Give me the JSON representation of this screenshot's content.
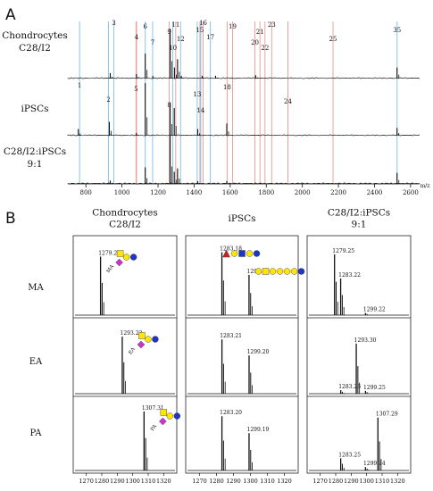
{
  "figure": {
    "panel_a_label": "A",
    "panel_b_label": "B",
    "colors": {
      "blue_marker": "#8cc4e8",
      "red_marker": "#e9a39b",
      "trace": "#111111",
      "glycan_yellow": "#ffe600",
      "glycan_blue": "#1f35c7",
      "glycan_magenta": "#cc33cc",
      "glycan_red": "#cc2222"
    }
  },
  "chart_data": [
    {
      "type": "line",
      "panel": "A",
      "x_unit": "m/z",
      "xlim": [
        700,
        2650
      ],
      "x_ticks": [
        800,
        1000,
        1200,
        1400,
        1600,
        1800,
        2000,
        2200,
        2400,
        2600
      ],
      "tracks": [
        {
          "name": [
            "Chondrocytes",
            "C28/I2"
          ],
          "peaks": [
            {
              "mz": 935,
              "h": 0.1
            },
            {
              "mz": 1080,
              "h": 0.08
            },
            {
              "mz": 1129,
              "h": 0.45
            },
            {
              "mz": 1171,
              "h": 0.05
            },
            {
              "mz": 1267,
              "h": 0.9
            },
            {
              "mz": 1291,
              "h": 0.2
            },
            {
              "mz": 1308,
              "h": 0.35
            },
            {
              "mz": 1329,
              "h": 0.05
            },
            {
              "mz": 1445,
              "h": 0.05
            },
            {
              "mz": 1519,
              "h": 0.05
            },
            {
              "mz": 1741,
              "h": 0.06
            },
            {
              "mz": 2525,
              "h": 0.2
            }
          ],
          "labels": [
            {
              "text": "3",
              "mz": 955
            },
            {
              "text": "4",
              "mz": 1081
            },
            {
              "text": "6",
              "mz": 1129
            },
            {
              "text": "7",
              "mz": 1170
            },
            {
              "text": "9",
              "mz": 1262
            },
            {
              "text": "10",
              "mz": 1282
            },
            {
              "text": "11",
              "mz": 1298
            },
            {
              "text": "12",
              "mz": 1325
            },
            {
              "text": "15",
              "mz": 1432
            },
            {
              "text": "16",
              "mz": 1450
            },
            {
              "text": "17",
              "mz": 1490
            },
            {
              "text": "19",
              "mz": 1613
            },
            {
              "text": "20",
              "mz": 1737
            },
            {
              "text": "21",
              "mz": 1765
            },
            {
              "text": "22",
              "mz": 1793
            },
            {
              "text": "23",
              "mz": 1830
            },
            {
              "text": "25",
              "mz": 2170
            },
            {
              "text": "35",
              "mz": 2525
            }
          ]
        },
        {
          "name": [
            "iPSCs"
          ],
          "peaks": [
            {
              "mz": 758,
              "h": 0.12
            },
            {
              "mz": 930,
              "h": 0.25
            },
            {
              "mz": 1080,
              "h": 0.05
            },
            {
              "mz": 1129,
              "h": 0.95
            },
            {
              "mz": 1267,
              "h": 0.6
            },
            {
              "mz": 1290,
              "h": 0.5
            },
            {
              "mz": 1420,
              "h": 0.12
            },
            {
              "mz": 1581,
              "h": 0.22
            },
            {
              "mz": 2525,
              "h": 0.14
            }
          ],
          "labels": [
            {
              "text": "1",
              "mz": 765
            },
            {
              "text": "2",
              "mz": 925
            },
            {
              "text": "5",
              "mz": 1078
            },
            {
              "text": "8",
              "mz": 1262
            },
            {
              "text": "13",
              "mz": 1417
            },
            {
              "text": "14",
              "mz": 1437
            },
            {
              "text": "18",
              "mz": 1583
            },
            {
              "text": "24",
              "mz": 1920
            }
          ]
        },
        {
          "name": [
            "C28/I2:iPSCs",
            "9:1"
          ],
          "peaks": [
            {
              "mz": 935,
              "h": 0.06
            },
            {
              "mz": 1129,
              "h": 0.3
            },
            {
              "mz": 1267,
              "h": 0.9
            },
            {
              "mz": 1290,
              "h": 0.22
            },
            {
              "mz": 1308,
              "h": 0.28
            },
            {
              "mz": 1420,
              "h": 0.05
            },
            {
              "mz": 1581,
              "h": 0.05
            },
            {
              "mz": 2525,
              "h": 0.2
            }
          ],
          "labels": []
        }
      ],
      "markers": [
        {
          "mz": 765,
          "color": "blue"
        },
        {
          "mz": 925,
          "color": "blue"
        },
        {
          "mz": 955,
          "color": "blue"
        },
        {
          "mz": 1078,
          "color": "red"
        },
        {
          "mz": 1081,
          "color": "red"
        },
        {
          "mz": 1129,
          "color": "blue"
        },
        {
          "mz": 1170,
          "color": "blue"
        },
        {
          "mz": 1262,
          "color": "red"
        },
        {
          "mz": 1282,
          "color": "blue"
        },
        {
          "mz": 1298,
          "color": "red"
        },
        {
          "mz": 1325,
          "color": "blue"
        },
        {
          "mz": 1417,
          "color": "blue"
        },
        {
          "mz": 1432,
          "color": "red"
        },
        {
          "mz": 1437,
          "color": "blue"
        },
        {
          "mz": 1450,
          "color": "red"
        },
        {
          "mz": 1490,
          "color": "blue"
        },
        {
          "mz": 1583,
          "color": "red"
        },
        {
          "mz": 1613,
          "color": "red"
        },
        {
          "mz": 1737,
          "color": "red"
        },
        {
          "mz": 1765,
          "color": "red"
        },
        {
          "mz": 1793,
          "color": "red"
        },
        {
          "mz": 1830,
          "color": "red"
        },
        {
          "mz": 1920,
          "color": "red"
        },
        {
          "mz": 2170,
          "color": "red"
        },
        {
          "mz": 2525,
          "color": "blue"
        }
      ]
    },
    {
      "type": "line",
      "panel": "B",
      "xlim": [
        1265,
        1325
      ],
      "x_ticks": [
        1270,
        1280,
        1290,
        1300,
        1310,
        1320
      ],
      "row_labels": [
        "MA",
        "EA",
        "PA"
      ],
      "columns": [
        {
          "title": [
            "Chondrocytes",
            "C28/I2"
          ],
          "cells": [
            {
              "peaks": [
                {
                  "mz": 1279.2,
                  "h": 0.8,
                  "label": "1279.20"
                }
              ],
              "glycan": "MA",
              "glycan_label": "MA"
            },
            {
              "peaks": [
                {
                  "mz": 1293.23,
                  "h": 0.82,
                  "label": "1293.23"
                }
              ],
              "glycan": "EA",
              "glycan_label": "EA"
            },
            {
              "peaks": [
                {
                  "mz": 1307.31,
                  "h": 0.87,
                  "label": "1307.31"
                }
              ],
              "glycan": "PA",
              "glycan_label": "PA"
            }
          ]
        },
        {
          "title": [
            "iPSCs"
          ],
          "cells": [
            {
              "peaks": [
                {
                  "mz": 1283.18,
                  "h": 0.86,
                  "label": "1283.18"
                },
                {
                  "mz": 1299.17,
                  "h": 0.55,
                  "label": "1299.17"
                }
              ],
              "glycan": "iPSC",
              "glycan_label": ""
            },
            {
              "peaks": [
                {
                  "mz": 1283.21,
                  "h": 0.78,
                  "label": "1283.21"
                },
                {
                  "mz": 1299.2,
                  "h": 0.55,
                  "label": "1299.20"
                }
              ],
              "glycan": "",
              "glycan_label": ""
            },
            {
              "peaks": [
                {
                  "mz": 1283.2,
                  "h": 0.8,
                  "label": "1283.20"
                },
                {
                  "mz": 1299.19,
                  "h": 0.55,
                  "label": "1299.19"
                }
              ],
              "glycan": "",
              "glycan_label": ""
            }
          ]
        },
        {
          "title": [
            "C28/I2:iPSCs",
            "9:1"
          ],
          "cells": [
            {
              "peaks": [
                {
                  "mz": 1279.25,
                  "h": 0.83,
                  "label": "1279.25"
                },
                {
                  "mz": 1283.22,
                  "h": 0.5,
                  "label": "1283.22"
                },
                {
                  "mz": 1299.22,
                  "h": 0.03,
                  "label": "1299.22"
                }
              ],
              "glycan": "",
              "glycan_label": ""
            },
            {
              "peaks": [
                {
                  "mz": 1293.3,
                  "h": 0.72,
                  "label": "1293.30"
                },
                {
                  "mz": 1283.26,
                  "h": 0.05,
                  "label": "1283.26"
                },
                {
                  "mz": 1299.25,
                  "h": 0.04,
                  "label": "1299.25"
                }
              ],
              "glycan": "",
              "glycan_label": ""
            },
            {
              "peaks": [
                {
                  "mz": 1307.29,
                  "h": 0.78,
                  "label": "1307.29"
                },
                {
                  "mz": 1283.25,
                  "h": 0.18,
                  "label": "1283.25"
                },
                {
                  "mz": 1299.24,
                  "h": 0.05,
                  "label": "1299.24"
                }
              ],
              "glycan": "",
              "glycan_label": ""
            }
          ]
        }
      ]
    }
  ]
}
